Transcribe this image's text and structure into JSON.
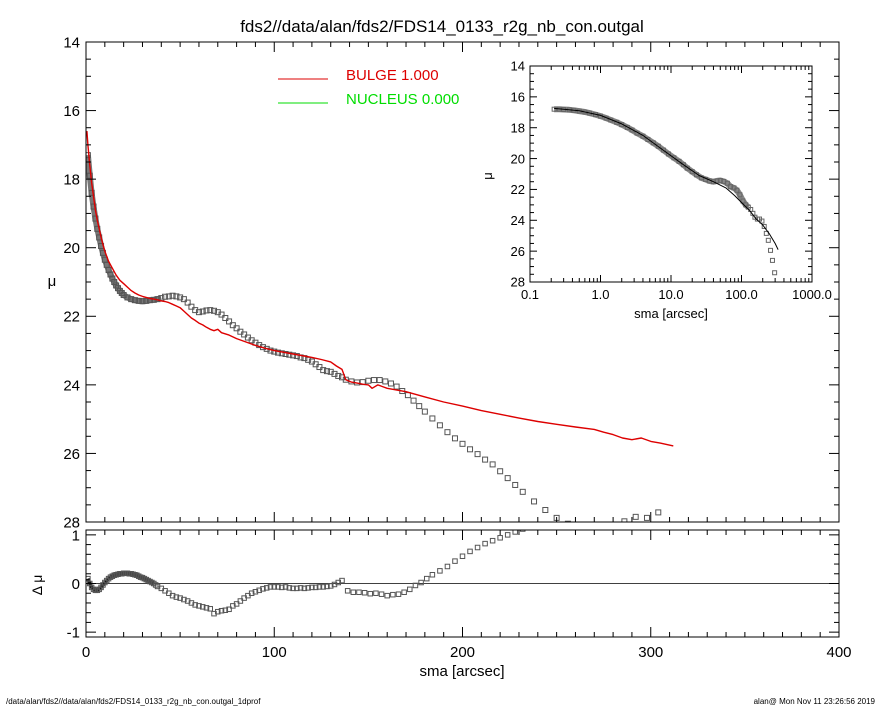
{
  "title": "fds2//data/alan/fds2/FDS14_0133_r2g_nb_con.outgal",
  "footer": {
    "left": "/data/alan/fds2//data/alan/fds2/FDS14_0133_r2g_nb_con.outgal_1dprof",
    "right": "alan@  Mon Nov 11 23:26:56 2019"
  },
  "colors": {
    "bulge": "#dd0000",
    "nucleus": "#00dd00",
    "data": "#555555",
    "axes": "#000000"
  },
  "chart_data": [
    {
      "id": "main",
      "type": "scatter",
      "ylabel": "μ",
      "xlim": [
        0,
        400
      ],
      "ylim": [
        28,
        14
      ],
      "x_ticks": [
        0,
        100,
        200,
        300,
        400
      ],
      "x_tick_labels": [
        "0",
        "100",
        "200",
        "300",
        "400"
      ],
      "y_ticks": [
        14,
        16,
        18,
        20,
        22,
        24,
        26,
        28
      ],
      "y_tick_labels": [
        "14",
        "16",
        "18",
        "20",
        "22",
        "24",
        "26",
        "28"
      ],
      "legend": [
        {
          "label": "BULGE  1.000",
          "color": "#dd0000"
        },
        {
          "label": "NUCLEUS  0.000",
          "color": "#00dd00"
        }
      ],
      "series": [
        {
          "name": "data",
          "kind": "points",
          "x": [
            1,
            2,
            3,
            4,
            5,
            6,
            7,
            8,
            9,
            10,
            11,
            12,
            13,
            14,
            15,
            16,
            17,
            18,
            19,
            20,
            22,
            24,
            26,
            28,
            30,
            32,
            34,
            36,
            38,
            40,
            42,
            44,
            46,
            48,
            50,
            52,
            54,
            56,
            58,
            60,
            62,
            64,
            66,
            68,
            70,
            72,
            74,
            76,
            78,
            80,
            82,
            84,
            86,
            88,
            90,
            92,
            94,
            96,
            98,
            100,
            102,
            104,
            106,
            108,
            110,
            112,
            114,
            116,
            118,
            120,
            122,
            124,
            126,
            128,
            130,
            132,
            134,
            136,
            138,
            141,
            144,
            147,
            150,
            153,
            156,
            159,
            162,
            165,
            168,
            171,
            174,
            177,
            180,
            184,
            188,
            192,
            196,
            200,
            204,
            208,
            212,
            216,
            220,
            224,
            228,
            232,
            238,
            244,
            250,
            256,
            262,
            268,
            274,
            280,
            286,
            292,
            298,
            304
          ],
          "y": [
            17.3,
            17.9,
            18.4,
            18.8,
            19.15,
            19.45,
            19.7,
            19.95,
            20.15,
            20.35,
            20.5,
            20.65,
            20.78,
            20.9,
            21.0,
            21.1,
            21.18,
            21.26,
            21.32,
            21.38,
            21.45,
            21.5,
            21.53,
            21.55,
            21.56,
            21.55,
            21.53,
            21.52,
            21.5,
            21.47,
            21.43,
            21.42,
            21.4,
            21.42,
            21.45,
            21.5,
            21.6,
            21.72,
            21.82,
            21.88,
            21.86,
            21.83,
            21.82,
            21.84,
            21.88,
            21.95,
            22.05,
            22.15,
            22.26,
            22.35,
            22.45,
            22.53,
            22.62,
            22.7,
            22.77,
            22.84,
            22.9,
            22.95,
            23.0,
            23.03,
            23.06,
            23.08,
            23.1,
            23.12,
            23.14,
            23.16,
            23.2,
            23.22,
            23.27,
            23.32,
            23.4,
            23.48,
            23.57,
            23.6,
            23.62,
            23.68,
            23.74,
            23.78,
            23.85,
            23.9,
            23.93,
            23.92,
            23.88,
            23.86,
            23.86,
            23.9,
            23.96,
            24.05,
            24.18,
            24.3,
            24.46,
            24.62,
            24.78,
            24.98,
            25.18,
            25.38,
            25.56,
            25.72,
            25.88,
            26.02,
            26.18,
            26.32,
            26.52,
            26.72,
            26.92,
            27.12,
            27.4,
            27.65,
            27.88,
            28.05,
            28.25,
            28.4,
            28.6,
            28.4,
            27.98,
            27.85,
            27.88,
            27.72
          ]
        },
        {
          "name": "bulge",
          "kind": "line",
          "color": "#dd0000",
          "x": [
            0.5,
            1,
            2,
            3,
            4,
            5,
            6,
            7,
            8,
            9,
            10,
            12,
            14,
            16,
            18,
            20,
            22,
            24,
            26,
            28,
            30,
            32,
            34,
            36,
            38,
            40,
            42,
            44,
            46,
            48,
            50,
            52,
            54,
            56,
            58,
            60,
            62,
            64,
            66,
            68,
            70,
            72,
            76,
            80,
            85,
            90,
            95,
            100,
            110,
            120,
            125,
            130,
            133,
            136,
            138,
            141,
            144,
            147,
            150,
            152,
            155,
            160,
            170,
            180,
            190,
            200,
            210,
            220,
            230,
            240,
            250,
            260,
            270,
            275,
            280,
            285,
            290,
            295,
            300,
            305,
            312
          ],
          "y": [
            16.6,
            17.0,
            17.6,
            18.1,
            18.5,
            18.9,
            19.2,
            19.45,
            19.7,
            19.9,
            20.1,
            20.4,
            20.6,
            20.8,
            20.95,
            21.05,
            21.15,
            21.25,
            21.32,
            21.38,
            21.42,
            21.45,
            21.48,
            21.5,
            21.52,
            21.55,
            21.57,
            21.6,
            21.65,
            21.7,
            21.75,
            21.85,
            21.95,
            22.05,
            22.12,
            22.2,
            22.25,
            22.32,
            22.38,
            22.42,
            22.38,
            22.48,
            22.55,
            22.65,
            22.75,
            22.85,
            22.93,
            23.0,
            23.1,
            23.2,
            23.26,
            23.33,
            23.45,
            23.55,
            23.85,
            23.92,
            23.95,
            23.98,
            24.0,
            24.1,
            24.0,
            24.1,
            24.2,
            24.35,
            24.5,
            24.62,
            24.75,
            24.86,
            24.97,
            25.07,
            25.15,
            25.23,
            25.3,
            25.38,
            25.45,
            25.55,
            25.6,
            25.55,
            25.65,
            25.7,
            25.78
          ]
        }
      ]
    },
    {
      "id": "residual",
      "type": "scatter",
      "ylabel": "Δ μ",
      "xlabel": "sma [arcsec]",
      "xlim": [
        0,
        400
      ],
      "ylim": [
        -1.1,
        1.1
      ],
      "x_ticks": [
        0,
        100,
        200,
        300,
        400
      ],
      "x_tick_labels": [
        "0",
        "100",
        "200",
        "300",
        "400"
      ],
      "y_ticks": [
        -1,
        0,
        1
      ],
      "y_tick_labels": [
        "-1",
        "0",
        "1"
      ],
      "zero_line": true,
      "series": [
        {
          "name": "residual",
          "kind": "points",
          "x": [
            1,
            2,
            3,
            4,
            5,
            6,
            7,
            8,
            9,
            10,
            11,
            12,
            13,
            14,
            15,
            16,
            17,
            18,
            19,
            20,
            21,
            22,
            23,
            24,
            25,
            26,
            27,
            28,
            29,
            30,
            31,
            32,
            33,
            34,
            35,
            36,
            37,
            38,
            40,
            42,
            44,
            46,
            48,
            50,
            52,
            54,
            56,
            58,
            60,
            62,
            64,
            66,
            68,
            70,
            72,
            74,
            76,
            78,
            80,
            82,
            84,
            86,
            88,
            90,
            92,
            94,
            96,
            98,
            100,
            102,
            104,
            106,
            108,
            110,
            112,
            114,
            116,
            118,
            120,
            122,
            124,
            126,
            128,
            130,
            132,
            134,
            136,
            139,
            142,
            145,
            148,
            151,
            154,
            157,
            160,
            163,
            166,
            169,
            172,
            175,
            178,
            181,
            184,
            188,
            192,
            196,
            200,
            204,
            208,
            212,
            216,
            220,
            224,
            228,
            232
          ],
          "y": [
            0.1,
            0.0,
            -0.08,
            -0.12,
            -0.14,
            -0.14,
            -0.12,
            -0.08,
            -0.03,
            0.02,
            0.06,
            0.1,
            0.13,
            0.15,
            0.17,
            0.18,
            0.19,
            0.2,
            0.2,
            0.21,
            0.21,
            0.21,
            0.2,
            0.2,
            0.19,
            0.18,
            0.17,
            0.15,
            0.13,
            0.12,
            0.1,
            0.08,
            0.06,
            0.04,
            0.02,
            0.0,
            -0.03,
            -0.06,
            -0.1,
            -0.15,
            -0.2,
            -0.25,
            -0.28,
            -0.3,
            -0.33,
            -0.36,
            -0.4,
            -0.44,
            -0.46,
            -0.48,
            -0.5,
            -0.52,
            -0.62,
            -0.58,
            -0.56,
            -0.55,
            -0.53,
            -0.46,
            -0.42,
            -0.36,
            -0.3,
            -0.25,
            -0.2,
            -0.17,
            -0.14,
            -0.11,
            -0.09,
            -0.07,
            -0.07,
            -0.07,
            -0.08,
            -0.07,
            -0.09,
            -0.1,
            -0.1,
            -0.09,
            -0.1,
            -0.09,
            -0.08,
            -0.08,
            -0.07,
            -0.07,
            -0.06,
            -0.05,
            -0.02,
            0.02,
            0.06,
            -0.15,
            -0.18,
            -0.18,
            -0.19,
            -0.21,
            -0.2,
            -0.22,
            -0.25,
            -0.23,
            -0.22,
            -0.18,
            -0.12,
            -0.04,
            0.02,
            0.1,
            0.18,
            0.26,
            0.35,
            0.46,
            0.56,
            0.66,
            0.74,
            0.82,
            0.88,
            0.94,
            1.0,
            1.06,
            1.12
          ]
        }
      ]
    },
    {
      "id": "inset",
      "type": "scatter",
      "scale": "log-x",
      "ylabel": "μ",
      "xlabel": "sma [arcsec]",
      "xlim": [
        0.1,
        1000
      ],
      "ylim": [
        28,
        14
      ],
      "x_ticks": [
        0.1,
        1,
        10,
        100,
        1000
      ],
      "x_tick_labels": [
        "0.1",
        "1.0",
        "10.0",
        "100.0",
        "1000.0"
      ],
      "y_ticks": [
        14,
        16,
        18,
        20,
        22,
        24,
        26,
        28
      ],
      "y_tick_labels": [
        "14",
        "16",
        "18",
        "20",
        "22",
        "24",
        "26",
        "28"
      ],
      "series": [
        {
          "name": "data",
          "kind": "points",
          "x": [
            0.22,
            0.26,
            0.3,
            0.36,
            0.42,
            0.5,
            0.6,
            0.7,
            0.85,
            1.0,
            1.2,
            1.4,
            1.7,
            2.0,
            2.4,
            2.8,
            3.3,
            4.0,
            4.7,
            5.6,
            6.6,
            7.8,
            9.2,
            11,
            13,
            15,
            17,
            20,
            23,
            27,
            31,
            35,
            40,
            45,
            50,
            56,
            63,
            70,
            78,
            86,
            95,
            105,
            115,
            125,
            135,
            145,
            155,
            168,
            180,
            195,
            210,
            225,
            240,
            258,
            275,
            295,
            315
          ],
          "y": [
            16.8,
            16.8,
            16.82,
            16.84,
            16.87,
            16.92,
            16.98,
            17.05,
            17.15,
            17.25,
            17.38,
            17.5,
            17.65,
            17.8,
            17.98,
            18.15,
            18.35,
            18.55,
            18.76,
            18.98,
            19.2,
            19.45,
            19.7,
            19.95,
            20.18,
            20.4,
            20.62,
            20.85,
            21.05,
            21.25,
            21.35,
            21.45,
            21.5,
            21.45,
            21.42,
            21.48,
            21.6,
            21.82,
            21.9,
            22.05,
            22.35,
            22.75,
            23.0,
            23.15,
            23.3,
            23.55,
            23.8,
            23.92,
            23.92,
            24.05,
            24.4,
            24.85,
            25.3,
            25.95,
            26.6,
            27.4,
            28.2
          ]
        },
        {
          "name": "model",
          "kind": "line",
          "color": "#000000",
          "x": [
            0.22,
            0.3,
            0.5,
            1,
            2,
            4,
            8,
            15,
            25,
            40,
            60,
            80,
            100,
            130,
            160,
            200,
            250,
            300,
            330
          ],
          "y": [
            16.75,
            16.8,
            16.9,
            17.2,
            17.75,
            18.5,
            19.5,
            20.4,
            21.1,
            21.5,
            21.9,
            22.4,
            22.85,
            23.35,
            23.9,
            24.3,
            24.9,
            25.5,
            25.9
          ]
        }
      ]
    }
  ]
}
